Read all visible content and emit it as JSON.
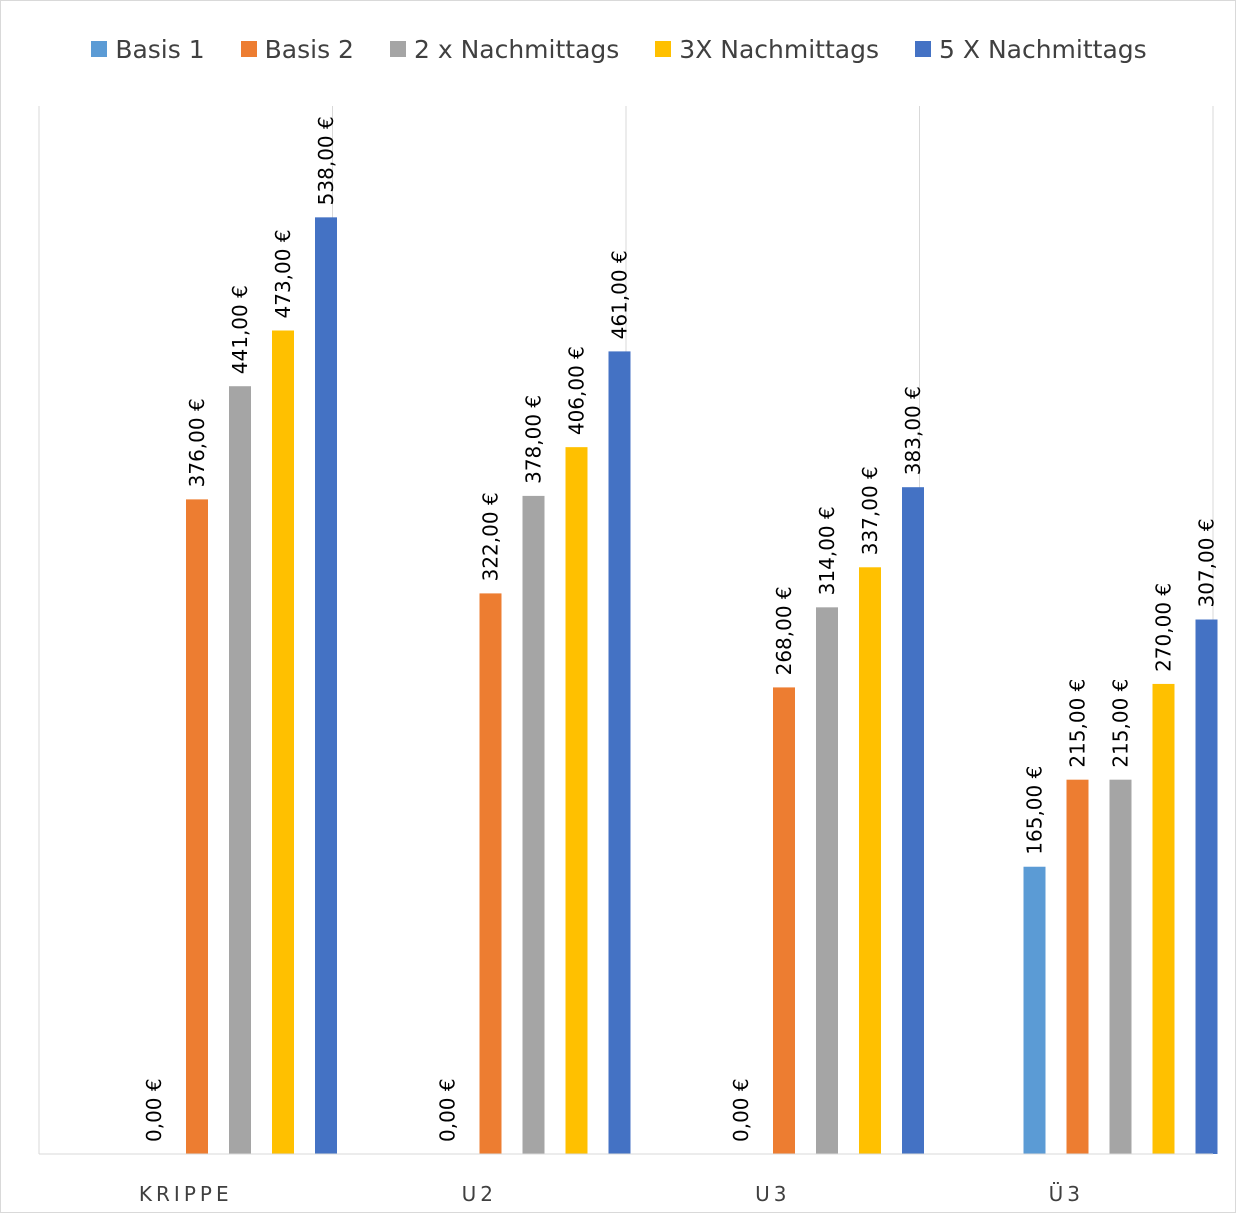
{
  "chart_data": {
    "type": "bar",
    "categories": [
      "KRIPPE",
      "U2",
      "U3",
      "Ü3"
    ],
    "series": [
      {
        "name": "Basis 1",
        "color": "#5b9bd5",
        "values": [
          0,
          0,
          0,
          165
        ],
        "labels": [
          "0,00 €",
          "0,00 €",
          "0,00 €",
          "165,00 €"
        ]
      },
      {
        "name": "Basis 2",
        "color": "#ed7d31",
        "values": [
          376,
          322,
          268,
          215
        ],
        "labels": [
          "376,00 €",
          "322,00 €",
          "268,00 €",
          "215,00 €"
        ]
      },
      {
        "name": "2 x Nachmittags",
        "color": "#a5a5a5",
        "values": [
          441,
          378,
          314,
          215
        ],
        "labels": [
          "441,00 €",
          "378,00 €",
          "314,00 €",
          "215,00 €"
        ]
      },
      {
        "name": "3X Nachmittags",
        "color": "#ffc000",
        "values": [
          473,
          406,
          337,
          270
        ],
        "labels": [
          "473,00 €",
          "406,00 €",
          "337,00 €",
          "270,00 €"
        ]
      },
      {
        "name": "5 X Nachmittags",
        "color": "#4472c4",
        "values": [
          538,
          461,
          383,
          307
        ],
        "labels": [
          "538,00 €",
          "461,00 €",
          "383,00 €",
          "307,00 €"
        ]
      }
    ],
    "title": "",
    "xlabel": "",
    "ylabel": "",
    "ylim": [
      0,
      600
    ],
    "grid": "vertical category separators",
    "legend": "top"
  }
}
